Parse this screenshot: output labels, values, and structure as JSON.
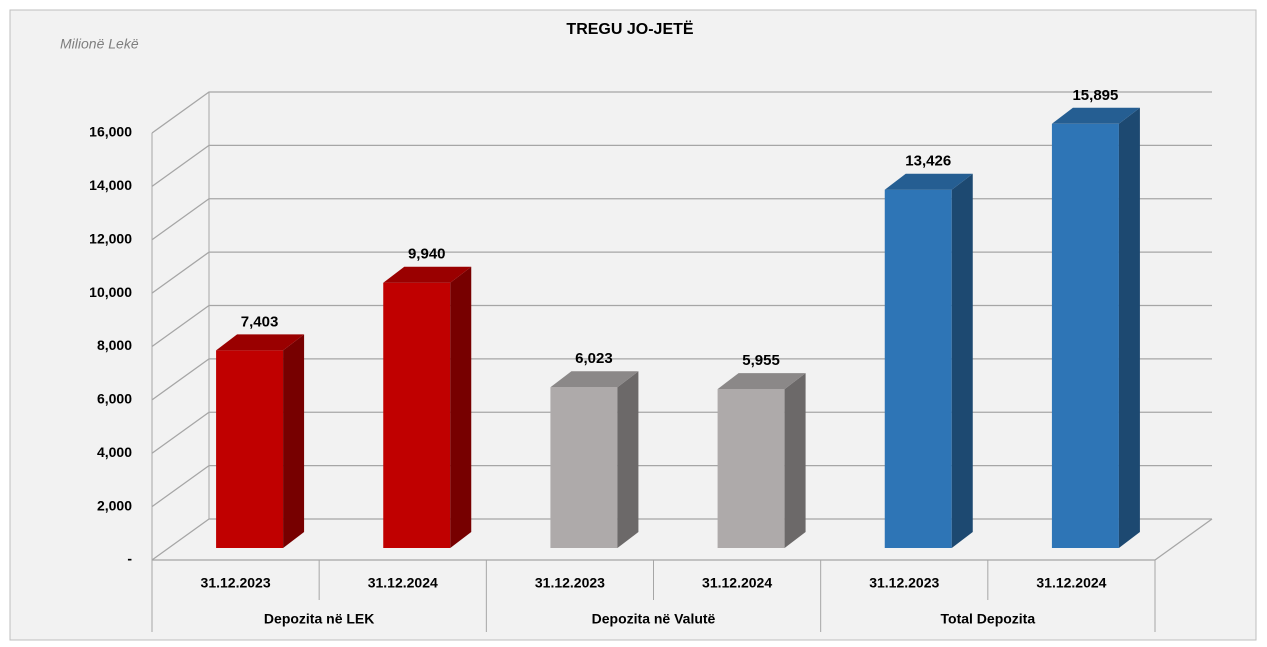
{
  "chart_data": {
    "type": "bar3d",
    "title": "TREGU JO-JETË",
    "subtitle": "Milionë Lekë",
    "categories": [
      "31.12.2023",
      "31.12.2024",
      "31.12.2023",
      "31.12.2024",
      "31.12.2023",
      "31.12.2024"
    ],
    "groups": [
      "Depozita në LEK",
      "Depozita në Valutë",
      "Total Depozita"
    ],
    "values": [
      7403,
      9940,
      6023,
      5955,
      13426,
      15895
    ],
    "value_labels": [
      "7,403",
      "9,940",
      "6,023",
      "5,955",
      "13,426",
      "15,895"
    ],
    "colors": [
      "#c00000",
      "#c00000",
      "#aeaaaa",
      "#aeaaaa",
      "#2e75b6",
      "#2e75b6"
    ],
    "ylim": [
      0,
      16000
    ],
    "yticks": [
      {
        "value": 0,
        "label": "-"
      },
      {
        "value": 2000,
        "label": "2,000"
      },
      {
        "value": 4000,
        "label": "4,000"
      },
      {
        "value": 6000,
        "label": "6,000"
      },
      {
        "value": 8000,
        "label": "8,000"
      },
      {
        "value": 10000,
        "label": "10,000"
      },
      {
        "value": 12000,
        "label": "12,000"
      },
      {
        "value": 14000,
        "label": "14,000"
      },
      {
        "value": 16000,
        "label": "16,000"
      }
    ],
    "grid": true
  }
}
